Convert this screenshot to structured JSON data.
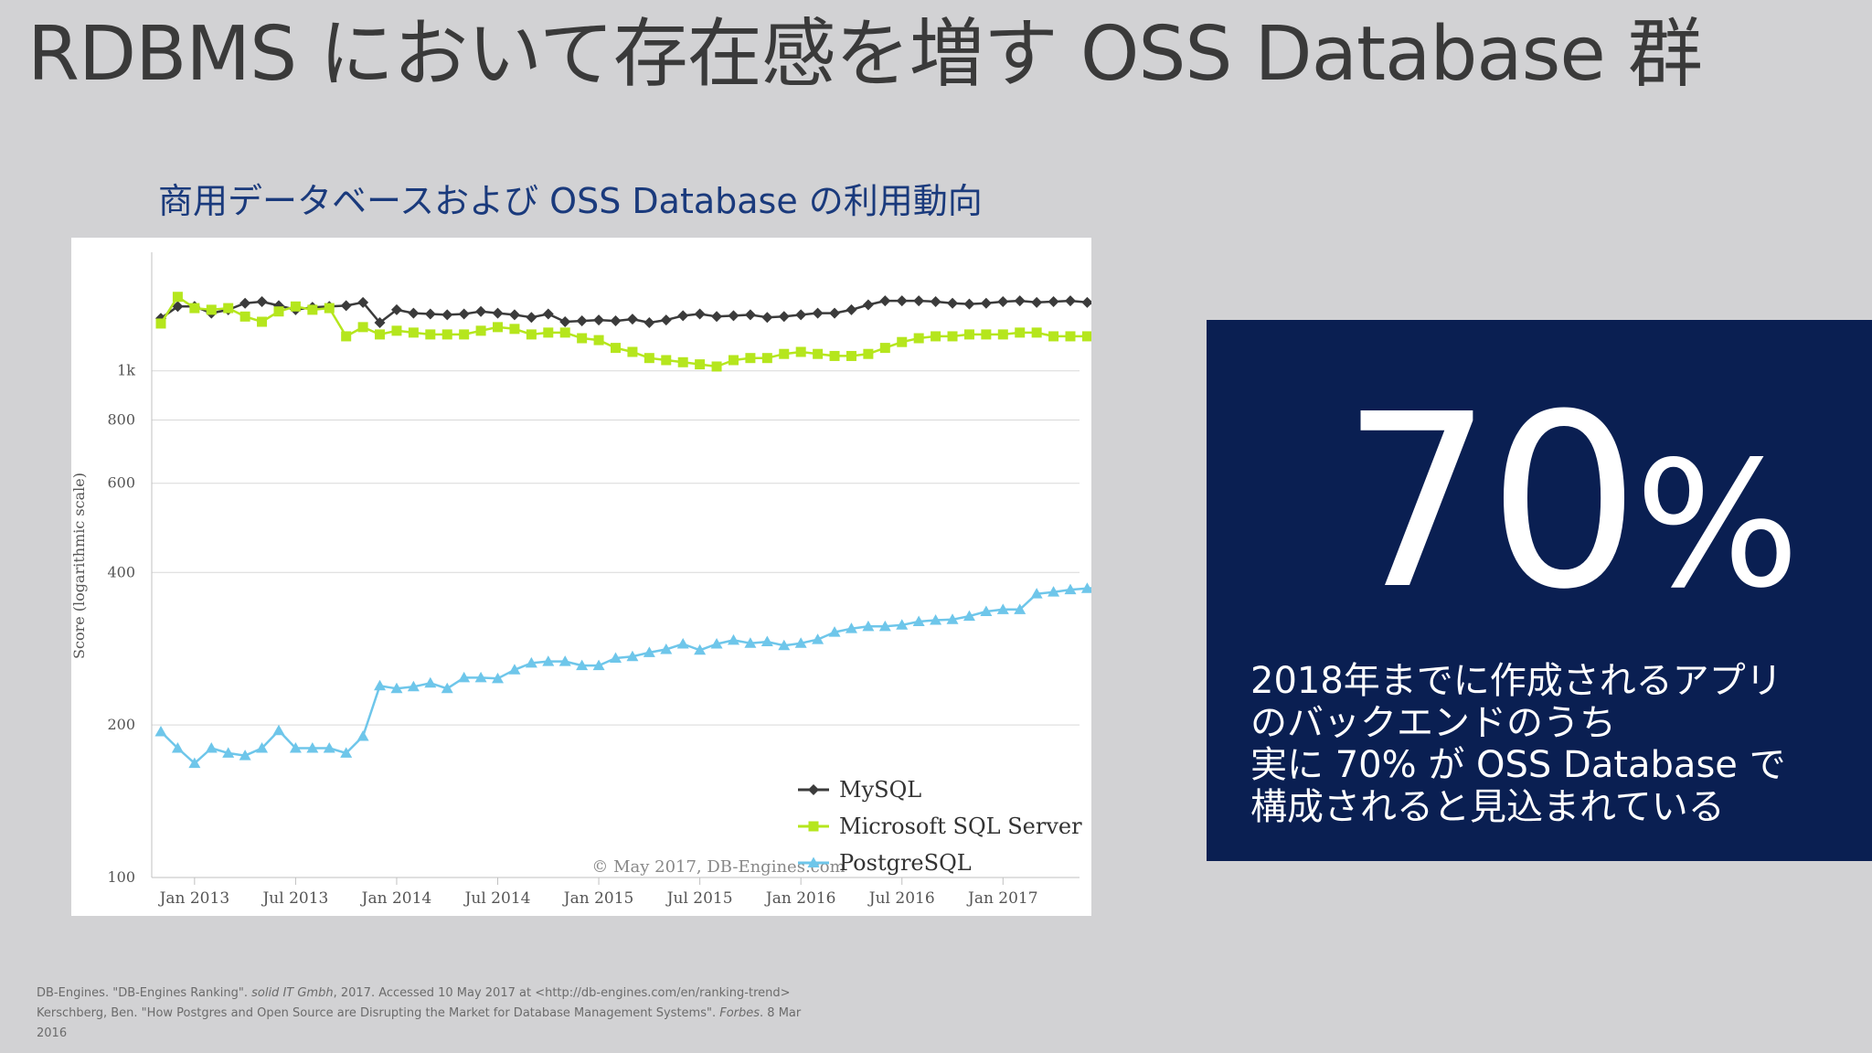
{
  "slide": {
    "title": "RDBMS において存在感を増す OSS Database 群",
    "chart_heading": "商用データベースおよび OSS Database の利用動向"
  },
  "stat": {
    "value": "70",
    "unit": "%",
    "description": [
      "2018年までに作成されるアプリ",
      "のバックエンドのうち",
      "実に 70% が OSS Database で",
      "構成されると見込まれている"
    ]
  },
  "references": [
    {
      "pre": "DB-Engines. \"DB-Engines Ranking\". ",
      "em": "solid IT Gmbh",
      "post": ", 2017.  Accessed 10 May 2017 at <http://db-engines.com/en/ranking-trend>"
    },
    {
      "pre": "Kerschberg, Ben. \"How Postgres and Open Source are Disrupting the Market for Database Management Systems\". ",
      "em": "Forbes",
      "post": ". 8 Mar"
    },
    {
      "pre": "2016",
      "em": "",
      "post": ""
    }
  ],
  "colors": {
    "background": "#d2d2d4",
    "stat_box": "#0a1f52",
    "heading": "#1a3a7c",
    "mysql": "#3b3b3b",
    "mssql": "#b5e61d",
    "postgres": "#6ec6ea"
  },
  "chart_data": {
    "type": "line",
    "ylabel": "Score (logarithmic scale)",
    "yscale": "log",
    "ylim": [
      100,
      1700
    ],
    "yticks": [
      100,
      200,
      400,
      600,
      800,
      1000
    ],
    "ytick_labels": [
      "100",
      "200",
      "400",
      "600",
      "800",
      "1k"
    ],
    "x_start": "2012-11",
    "x_end": "2017-05",
    "xticks": [
      "2013-01",
      "2013-07",
      "2014-01",
      "2014-07",
      "2015-01",
      "2015-07",
      "2016-01",
      "2016-07",
      "2017-01"
    ],
    "xtick_labels": [
      "Jan 2013",
      "Jul 2013",
      "Jan 2014",
      "Jul 2014",
      "Jan 2015",
      "Jul 2015",
      "Jan 2016",
      "Jul 2016",
      "Jan 2017"
    ],
    "credit": "© May 2017, DB-Engines.com",
    "grid": true,
    "legend_position": "bottom-right",
    "series": [
      {
        "name": "MySQL",
        "marker": "diamond",
        "color": "#3b3b3b",
        "values": [
          1270,
          1340,
          1340,
          1300,
          1320,
          1360,
          1370,
          1345,
          1320,
          1335,
          1340,
          1345,
          1365,
          1245,
          1320,
          1300,
          1295,
          1290,
          1295,
          1310,
          1300,
          1290,
          1275,
          1295,
          1250,
          1255,
          1260,
          1255,
          1265,
          1245,
          1260,
          1285,
          1295,
          1280,
          1285,
          1290,
          1275,
          1280,
          1290,
          1300,
          1300,
          1320,
          1350,
          1375,
          1375,
          1375,
          1370,
          1360,
          1355,
          1360,
          1370,
          1375,
          1365,
          1370,
          1375,
          1365,
          1340
        ]
      },
      {
        "name": "Microsoft SQL Server",
        "marker": "square",
        "color": "#b5e61d",
        "values": [
          1240,
          1400,
          1330,
          1320,
          1330,
          1280,
          1250,
          1310,
          1340,
          1320,
          1330,
          1170,
          1220,
          1180,
          1200,
          1190,
          1180,
          1180,
          1180,
          1200,
          1220,
          1210,
          1180,
          1190,
          1190,
          1160,
          1150,
          1110,
          1090,
          1060,
          1050,
          1040,
          1030,
          1020,
          1050,
          1060,
          1060,
          1080,
          1090,
          1080,
          1070,
          1070,
          1080,
          1110,
          1140,
          1160,
          1170,
          1170,
          1180,
          1180,
          1180,
          1190,
          1190,
          1170,
          1170,
          1170,
          1175
        ]
      },
      {
        "name": "PostgreSQL",
        "marker": "triangle",
        "color": "#6ec6ea",
        "values": [
          194,
          180,
          168,
          180,
          176,
          174,
          180,
          195,
          180,
          180,
          180,
          176,
          190,
          239,
          236,
          238,
          242,
          236,
          248,
          248,
          247,
          257,
          265,
          267,
          267,
          262,
          262,
          271,
          273,
          278,
          282,
          289,
          281,
          289,
          294,
          290,
          292,
          287,
          290,
          295,
          305,
          310,
          313,
          313,
          315,
          320,
          322,
          323,
          328,
          335,
          338,
          338,
          363,
          366,
          370,
          372,
          374
        ]
      }
    ]
  }
}
